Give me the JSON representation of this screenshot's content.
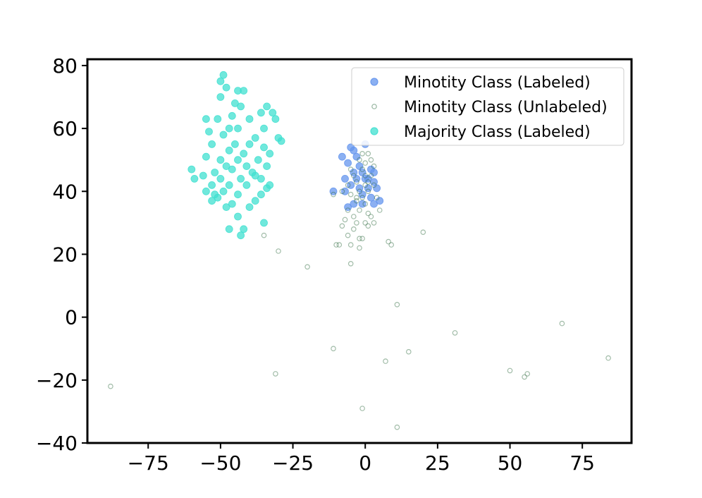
{
  "chart_data": {
    "type": "scatter",
    "title": "",
    "xlabel": "",
    "ylabel": "",
    "xlim": [
      -96,
      92
    ],
    "ylim": [
      -40,
      82
    ],
    "xticks": [
      -75,
      -50,
      -25,
      0,
      25,
      50,
      75
    ],
    "yticks": [
      -40,
      -20,
      0,
      20,
      40,
      60,
      80
    ],
    "xtick_labels": [
      "−75",
      "−50",
      "−25",
      "0",
      "25",
      "50",
      "75"
    ],
    "ytick_labels": [
      "−40",
      "−20",
      "0",
      "20",
      "40",
      "60",
      "80"
    ],
    "grid": false,
    "legend_position": "top-right",
    "series": [
      {
        "name": "Minotity Class (Labeled)",
        "marker": "filled-circle",
        "color": "#6495ed",
        "edge_color": "#6495ed",
        "points": [
          [
            -5,
            54
          ],
          [
            -8,
            51
          ],
          [
            -3,
            51
          ],
          [
            -6,
            49
          ],
          [
            -2,
            48
          ],
          [
            -4,
            46
          ],
          [
            -1,
            46
          ],
          [
            2,
            47
          ],
          [
            -3,
            44
          ],
          [
            0,
            44
          ],
          [
            3,
            43
          ],
          [
            -5,
            42
          ],
          [
            -2,
            41
          ],
          [
            1,
            41
          ],
          [
            4,
            41
          ],
          [
            -11,
            40
          ],
          [
            -7,
            40
          ],
          [
            -1,
            39
          ],
          [
            2,
            38
          ],
          [
            5,
            37
          ],
          [
            -4,
            36
          ],
          [
            -1,
            36
          ],
          [
            3,
            36
          ],
          [
            -6,
            35
          ],
          [
            -4,
            53
          ],
          [
            0,
            55
          ],
          [
            -7,
            44
          ],
          [
            1,
            44
          ],
          [
            3,
            46
          ]
        ]
      },
      {
        "name": "Minotity Class (Unlabeled)",
        "marker": "hollow-circle",
        "color": "none",
        "edge_color": "#2e6b3f",
        "points": [
          [
            1,
            52
          ],
          [
            -2,
            50
          ],
          [
            2,
            50
          ],
          [
            0,
            49
          ],
          [
            -5,
            47
          ],
          [
            -1,
            47
          ],
          [
            3,
            48
          ],
          [
            -4,
            45
          ],
          [
            0,
            45
          ],
          [
            2,
            45
          ],
          [
            -3,
            43
          ],
          [
            1,
            43
          ],
          [
            -6,
            42
          ],
          [
            0,
            42
          ],
          [
            3,
            42
          ],
          [
            -2,
            40
          ],
          [
            1,
            40
          ],
          [
            -8,
            40
          ],
          [
            -5,
            39
          ],
          [
            -1,
            38
          ],
          [
            4,
            38
          ],
          [
            -3,
            37
          ],
          [
            0,
            36
          ],
          [
            -11,
            39
          ],
          [
            -6,
            34
          ],
          [
            -2,
            34
          ],
          [
            1,
            33
          ],
          [
            5,
            34
          ],
          [
            -4,
            32
          ],
          [
            2,
            32
          ],
          [
            -7,
            31
          ],
          [
            -3,
            30
          ],
          [
            0,
            30
          ],
          [
            3,
            30
          ],
          [
            -8,
            29
          ],
          [
            -4,
            28
          ],
          [
            1,
            29
          ],
          [
            -6,
            26
          ],
          [
            -2,
            25
          ],
          [
            -1,
            25
          ],
          [
            -5,
            23
          ],
          [
            -2,
            22
          ],
          [
            -9,
            23
          ],
          [
            -10,
            23
          ],
          [
            -5,
            17
          ],
          [
            8,
            24
          ],
          [
            9,
            23
          ],
          [
            20,
            27
          ],
          [
            -35,
            26
          ],
          [
            -30,
            21
          ],
          [
            -20,
            16
          ],
          [
            11,
            4
          ],
          [
            31,
            -5
          ],
          [
            68,
            -2
          ],
          [
            -11,
            -10
          ],
          [
            15,
            -11
          ],
          [
            7,
            -14
          ],
          [
            50,
            -17
          ],
          [
            56,
            -18
          ],
          [
            55,
            -19
          ],
          [
            84,
            -13
          ],
          [
            -31,
            -18
          ],
          [
            -88,
            -22
          ],
          [
            -1,
            -29
          ],
          [
            11,
            -35
          ],
          [
            -3,
            38
          ],
          [
            -1,
            52
          ]
        ]
      },
      {
        "name": "Majority Class (Labeled)",
        "marker": "filled-circle",
        "color": "#40e0d0",
        "edge_color": "#40e0d0",
        "points": [
          [
            -49,
            77
          ],
          [
            -50,
            75
          ],
          [
            -48,
            73
          ],
          [
            -44,
            72
          ],
          [
            -42,
            72
          ],
          [
            -50,
            70
          ],
          [
            -45,
            68
          ],
          [
            -43,
            67
          ],
          [
            -34,
            67
          ],
          [
            -32,
            65
          ],
          [
            -55,
            63
          ],
          [
            -36,
            65
          ],
          [
            -46,
            64
          ],
          [
            -51,
            63
          ],
          [
            -40,
            63
          ],
          [
            -31,
            63
          ],
          [
            -47,
            60
          ],
          [
            -44,
            60
          ],
          [
            -54,
            59
          ],
          [
            -35,
            60
          ],
          [
            -30,
            57
          ],
          [
            -49,
            58
          ],
          [
            -38,
            57
          ],
          [
            -29,
            56
          ],
          [
            -53,
            55
          ],
          [
            -45,
            55
          ],
          [
            -40,
            55
          ],
          [
            -35,
            54
          ],
          [
            -47,
            53
          ],
          [
            -42,
            52
          ],
          [
            -33,
            52
          ],
          [
            -55,
            51
          ],
          [
            -50,
            50
          ],
          [
            -44,
            50
          ],
          [
            -37,
            50
          ],
          [
            -48,
            48
          ],
          [
            -41,
            48
          ],
          [
            -34,
            48
          ],
          [
            -60,
            47
          ],
          [
            -52,
            46
          ],
          [
            -46,
            47
          ],
          [
            -39,
            46
          ],
          [
            -56,
            45
          ],
          [
            -50,
            44
          ],
          [
            -43,
            44
          ],
          [
            -36,
            44
          ],
          [
            -59,
            44
          ],
          [
            -53,
            42
          ],
          [
            -47,
            42
          ],
          [
            -41,
            42
          ],
          [
            -33,
            42
          ],
          [
            -55,
            40
          ],
          [
            -49,
            40
          ],
          [
            -44,
            39
          ],
          [
            -36,
            39
          ],
          [
            -51,
            38
          ],
          [
            -38,
            37
          ],
          [
            -46,
            36
          ],
          [
            -40,
            35
          ],
          [
            -53,
            37
          ],
          [
            -44,
            32
          ],
          [
            -35,
            30
          ],
          [
            -42,
            28
          ],
          [
            -47,
            28
          ],
          [
            -43,
            26
          ],
          [
            -34,
            41
          ],
          [
            -38,
            45
          ],
          [
            -52,
            39
          ],
          [
            -48,
            35
          ]
        ]
      }
    ]
  },
  "legend": {
    "items": [
      {
        "label": "Minotity Class (Labeled)",
        "marker": "filled-circle",
        "color": "#6495ed",
        "edge_color": "#6495ed"
      },
      {
        "label": "Minotity Class (Unlabeled)",
        "marker": "hollow-circle",
        "color": "none",
        "edge_color": "#2e6b3f"
      },
      {
        "label": "Majority Class (Labeled)",
        "marker": "filled-circle",
        "color": "#40e0d0",
        "edge_color": "#40e0d0"
      }
    ]
  }
}
